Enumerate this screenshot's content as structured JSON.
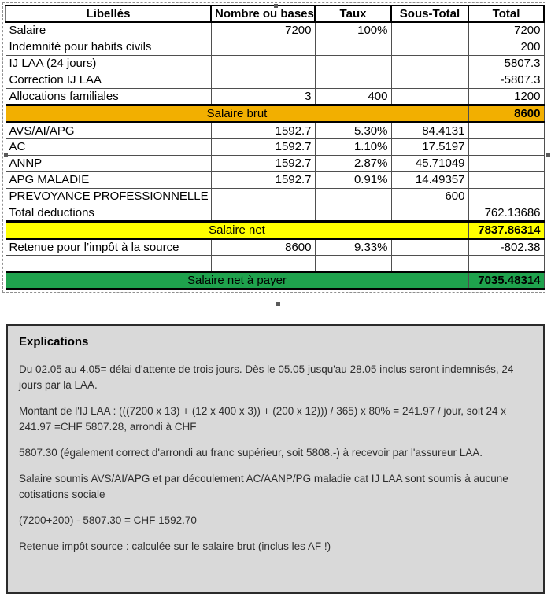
{
  "colors": {
    "band_salaire_brut": "#F2AF00",
    "band_salaire_net": "#FFFF00",
    "band_salaire_net_a_payer": "#1FA24D",
    "explain_background": "#D9D9D9"
  },
  "table": {
    "headers": [
      "Libellés",
      "Nombre ou bases",
      "Taux",
      "Sous-Total",
      "Total"
    ],
    "rows_top": [
      [
        "Salaire",
        "7200",
        "100%",
        "",
        "7200"
      ],
      [
        "Indemnité pour habits civils",
        "",
        "",
        "",
        "200"
      ],
      [
        "IJ LAA (24 jours)",
        "",
        "",
        "",
        "5807.3"
      ],
      [
        "Correction IJ LAA",
        "",
        "",
        "",
        "-5807.3"
      ],
      [
        "Allocations familiales",
        "3",
        "400",
        "",
        "1200"
      ]
    ],
    "band_brut": {
      "label": "Salaire brut",
      "total": "8600"
    },
    "rows_deductions": [
      [
        "AVS/AI/APG",
        "1592.7",
        "5.30%",
        "84.4131",
        ""
      ],
      [
        "AC",
        "1592.7",
        "1.10%",
        "17.5197",
        ""
      ],
      [
        "ANNP",
        "1592.7",
        "2.87%",
        "45.71049",
        ""
      ],
      [
        "APG MALADIE",
        "1592.7",
        "0.91%",
        "14.49357",
        ""
      ],
      [
        "PREVOYANCE PROFESSIONNELLE",
        "",
        "",
        "600",
        ""
      ],
      [
        "Total deductions",
        "",
        "",
        "",
        "762.13686"
      ]
    ],
    "band_net": {
      "label": "Salaire net",
      "total": "7837.86314"
    },
    "rows_bottom": [
      [
        "Retenue pour l’impôt à la source",
        "8600",
        "9.33%",
        "",
        "-802.38"
      ],
      [
        "",
        "",
        "",
        "",
        ""
      ]
    ],
    "band_payer": {
      "label": "Salaire net à payer",
      "total": "7035.48314"
    }
  },
  "explanations": {
    "title": "Explications",
    "paragraphs": [
      "Du 02.05 au 4.05= délai d'attente de trois jours. Dès le 05.05 jusqu'au 28.05 inclus seront indemnisés, 24 jours par la LAA.",
      "Montant de l'IJ LAA : (((7200 x 13) + (12 x 400 x 3)) + (200 x 12))) / 365) x 80% = 241.97 / jour, soit 24 x 241.97 =CHF 5807.28, arrondi à CHF",
      "5807.30 (également correct d'arrondi au franc supérieur, soit 5808.-) à recevoir par l'assureur LAA.",
      "Salaire soumis AVS/AI/APG et par découlement AC/AANP/PG maladie cat IJ LAA sont soumis à aucune cotisations sociale",
      "(7200+200) - 5807.30 = CHF 1592.70",
      "Retenue impôt source : calculée sur le salaire brut (inclus les AF !)"
    ]
  }
}
